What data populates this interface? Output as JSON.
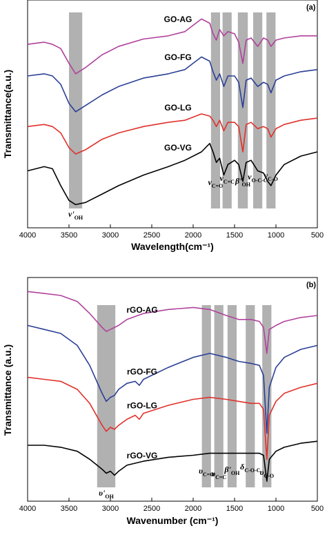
{
  "chart_data": [
    {
      "type": "line",
      "panel_label": "(a)",
      "xlabel": "Wavelength(cm⁻¹)",
      "ylabel": "Transmittance(a.u.)",
      "xlim": [
        4000,
        500
      ],
      "x_reversed": true,
      "xticks": [
        4000,
        3500,
        3000,
        2500,
        2000,
        1500,
        1000,
        500
      ],
      "y_unit": "arbitrary (offset)",
      "bands": [
        {
          "center": 3420,
          "width": 160,
          "label": "ν'",
          "sub": "OH"
        },
        {
          "center": 1730,
          "width": 110,
          "label": "ν",
          "sub": "C=O"
        },
        {
          "center": 1590,
          "width": 110,
          "label": "ν",
          "sub": "C=C"
        },
        {
          "center": 1400,
          "width": 120,
          "label": "β'",
          "sub": "OH"
        },
        {
          "center": 1220,
          "width": 110,
          "label": "ν",
          "sub": "O-C-O"
        },
        {
          "center": 1060,
          "width": 110,
          "label": "ν",
          "sub": "C-O"
        }
      ],
      "series": [
        {
          "name": "GO-AG",
          "color": "#b0419c",
          "x": [
            4000,
            3800,
            3700,
            3600,
            3500,
            3420,
            3300,
            3100,
            2900,
            2600,
            2300,
            2100,
            1900,
            1800,
            1760,
            1720,
            1680,
            1630,
            1580,
            1500,
            1450,
            1400,
            1360,
            1300,
            1220,
            1150,
            1100,
            1060,
            1000,
            900,
            700,
            500
          ],
          "y": [
            8.1,
            8.2,
            8.1,
            7.9,
            7.2,
            6.7,
            7.0,
            7.6,
            8.0,
            8.35,
            8.5,
            8.7,
            9.3,
            9.1,
            8.6,
            8.3,
            8.8,
            8.5,
            8.7,
            8.6,
            8.2,
            7.2,
            8.3,
            8.4,
            8.0,
            8.4,
            8.3,
            8.0,
            8.3,
            8.4,
            8.5,
            8.5
          ]
        },
        {
          "name": "GO-FG",
          "color": "#2a3f96",
          "x": [
            4000,
            3800,
            3700,
            3600,
            3500,
            3420,
            3300,
            3100,
            2900,
            2600,
            2300,
            2100,
            1900,
            1800,
            1760,
            1720,
            1680,
            1630,
            1580,
            1500,
            1450,
            1400,
            1360,
            1300,
            1220,
            1150,
            1100,
            1060,
            1000,
            900,
            700,
            500
          ],
          "y": [
            6.6,
            6.7,
            6.6,
            6.2,
            5.3,
            4.9,
            5.2,
            5.7,
            6.1,
            6.5,
            6.7,
            6.9,
            7.5,
            7.3,
            6.8,
            6.4,
            6.7,
            6.1,
            6.6,
            6.6,
            6.3,
            5.1,
            6.4,
            6.5,
            6.1,
            6.3,
            6.2,
            5.8,
            6.4,
            6.6,
            6.8,
            6.9
          ]
        },
        {
          "name": "GO-LG",
          "color": "#e0302a",
          "x": [
            4000,
            3800,
            3700,
            3600,
            3500,
            3420,
            3300,
            3100,
            2900,
            2600,
            2300,
            2100,
            1900,
            1800,
            1760,
            1720,
            1680,
            1630,
            1580,
            1500,
            1450,
            1400,
            1360,
            1300,
            1220,
            1150,
            1100,
            1060,
            1000,
            900,
            700,
            500
          ],
          "y": [
            4.2,
            4.3,
            4.2,
            3.9,
            3.2,
            2.9,
            3.1,
            3.6,
            3.9,
            4.2,
            4.4,
            4.5,
            4.8,
            4.7,
            4.5,
            4.2,
            4.5,
            4.0,
            4.4,
            4.4,
            4.2,
            3.0,
            4.3,
            4.4,
            4.1,
            4.2,
            4.1,
            3.7,
            4.1,
            4.3,
            4.5,
            4.6
          ]
        },
        {
          "name": "GO-VG",
          "color": "#000000",
          "x": [
            4000,
            3800,
            3700,
            3600,
            3500,
            3420,
            3300,
            3100,
            2900,
            2600,
            2300,
            2100,
            1900,
            1800,
            1760,
            1720,
            1680,
            1630,
            1580,
            1500,
            1450,
            1400,
            1360,
            1300,
            1220,
            1150,
            1100,
            1060,
            1000,
            900,
            700,
            500
          ],
          "y": [
            2.1,
            2.3,
            2.2,
            1.4,
            0.7,
            0.5,
            0.6,
            1.0,
            1.4,
            1.9,
            2.3,
            2.6,
            3.0,
            3.4,
            3.0,
            2.5,
            2.7,
            1.9,
            2.4,
            2.6,
            2.4,
            1.6,
            2.5,
            2.6,
            2.1,
            2.0,
            1.6,
            1.4,
            1.9,
            2.4,
            2.8,
            3.0
          ]
        }
      ]
    },
    {
      "type": "line",
      "panel_label": "(b)",
      "xlabel": "Wavenumber (cm⁻¹)",
      "ylabel": "Transmittance (a.u.)",
      "xlim": [
        4000,
        500
      ],
      "x_reversed": true,
      "xticks": [
        4000,
        3500,
        3000,
        2500,
        2000,
        1500,
        1000,
        500
      ],
      "y_unit": "arbitrary (offset)",
      "bands": [
        {
          "center": 3050,
          "width": 220,
          "label": "υ'",
          "sub": "OH"
        },
        {
          "center": 1840,
          "width": 110,
          "label": "υ",
          "sub": "C=O"
        },
        {
          "center": 1690,
          "width": 110,
          "label": "υ",
          "sub": "C=C"
        },
        {
          "center": 1530,
          "width": 110,
          "label": "β'",
          "sub": "OH"
        },
        {
          "center": 1310,
          "width": 110,
          "label": "δ",
          "sub": "C-O-C"
        },
        {
          "center": 1110,
          "width": 110,
          "label": "υ",
          "sub": "C-O"
        }
      ],
      "series": [
        {
          "name": "rGO-AG",
          "color": "#b0419c",
          "x": [
            4000,
            3800,
            3600,
            3400,
            3250,
            3100,
            3050,
            3000,
            2900,
            2800,
            2600,
            2300,
            2000,
            1800,
            1600,
            1450,
            1300,
            1200,
            1150,
            1110,
            1080,
            1000,
            900,
            700,
            500
          ],
          "y": [
            9.7,
            9.6,
            9.5,
            9.2,
            8.6,
            7.9,
            7.7,
            7.8,
            8.0,
            8.3,
            8.6,
            8.8,
            8.9,
            8.8,
            8.5,
            8.3,
            8.3,
            8.2,
            7.9,
            6.6,
            7.8,
            8.0,
            8.2,
            8.4,
            8.5
          ]
        },
        {
          "name": "rGO-FG",
          "color": "#2a3f96",
          "x": [
            4000,
            3800,
            3600,
            3400,
            3250,
            3100,
            3050,
            3000,
            2950,
            2900,
            2800,
            2700,
            2650,
            2600,
            2300,
            2000,
            1800,
            1600,
            1450,
            1300,
            1200,
            1150,
            1110,
            1080,
            1000,
            900,
            700,
            500
          ],
          "y": [
            8.0,
            7.8,
            7.6,
            7.0,
            6.0,
            4.6,
            4.2,
            4.4,
            4.5,
            4.8,
            5.1,
            5.2,
            5.0,
            5.3,
            5.9,
            6.4,
            6.6,
            6.4,
            6.2,
            6.1,
            6.0,
            5.5,
            2.6,
            4.9,
            5.9,
            6.4,
            6.8,
            7.0
          ]
        },
        {
          "name": "rGO-LG",
          "color": "#e0302a",
          "x": [
            4000,
            3800,
            3600,
            3400,
            3250,
            3100,
            3050,
            3000,
            2950,
            2900,
            2800,
            2700,
            2650,
            2600,
            2300,
            2000,
            1800,
            1600,
            1450,
            1300,
            1200,
            1150,
            1110,
            1080,
            1000,
            900,
            700,
            500
          ],
          "y": [
            5.4,
            5.3,
            5.2,
            4.8,
            4.1,
            3.0,
            2.7,
            2.9,
            2.8,
            3.0,
            3.3,
            3.5,
            3.3,
            3.6,
            4.0,
            4.3,
            4.4,
            4.3,
            4.2,
            4.1,
            4.1,
            3.8,
            1.3,
            3.5,
            4.2,
            4.6,
            4.9,
            5.1
          ]
        },
        {
          "name": "rGO-VG",
          "color": "#000000",
          "x": [
            4000,
            3800,
            3600,
            3400,
            3250,
            3100,
            3050,
            3000,
            2950,
            2900,
            2800,
            2600,
            2300,
            2000,
            1800,
            1600,
            1450,
            1300,
            1200,
            1150,
            1110,
            1080,
            1000,
            900,
            700,
            500
          ],
          "y": [
            2.0,
            2.0,
            1.9,
            1.7,
            1.3,
            0.8,
            0.6,
            0.7,
            0.5,
            0.7,
            1.0,
            1.2,
            1.4,
            1.5,
            1.6,
            1.6,
            1.6,
            1.6,
            1.6,
            1.5,
            0.2,
            1.3,
            1.7,
            1.9,
            2.1,
            2.2
          ]
        }
      ]
    }
  ]
}
